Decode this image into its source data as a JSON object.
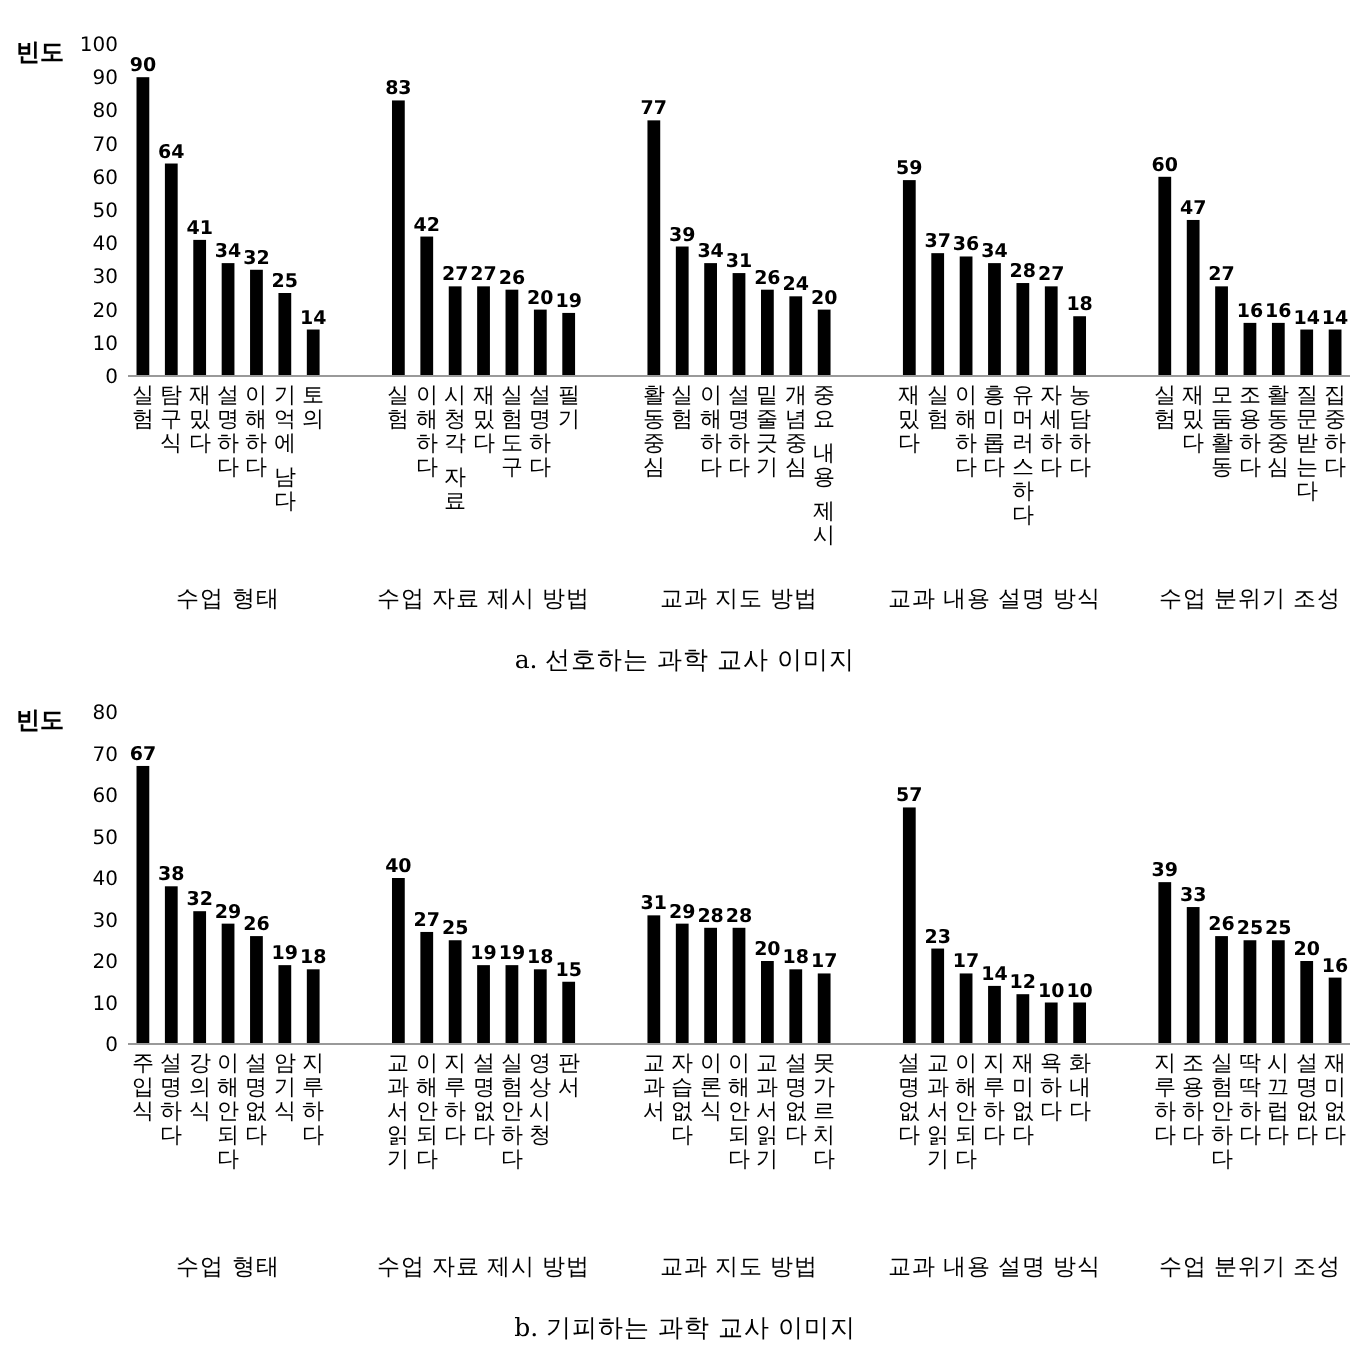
{
  "chart_data": [
    {
      "type": "bar",
      "title": "a. 선호하는 과학 교사 이미지",
      "ylabel": "빈도",
      "ylim": [
        0,
        100
      ],
      "yticks": [
        0,
        10,
        20,
        30,
        40,
        50,
        60,
        70,
        80,
        90,
        100
      ],
      "grid": false,
      "data_labels": true,
      "color": "#000000",
      "categories": [
        "실험",
        "탐구식",
        "재밌다",
        "설명하다",
        "이해하다",
        "기억에 남다",
        "토의",
        null,
        null,
        "실험",
        "이해하다",
        "시청각 자료",
        "재밌다",
        "실험도구",
        "설명하다",
        "필기",
        null,
        null,
        "활동중심",
        "실험",
        "이해하다",
        "설명하다",
        "밑줄긋기",
        "개념중심",
        "중요 내용 제시",
        null,
        null,
        "재밌다",
        "실험",
        "이해하다",
        "흥미롭다",
        "유머러스하다",
        "자세하다",
        "농담하다",
        null,
        null,
        "실험",
        "재밌다",
        "모둠활동",
        "조용하다",
        "활동중심",
        "질문받는다",
        "집중하다"
      ],
      "values": [
        90,
        64,
        41,
        34,
        32,
        25,
        14,
        null,
        null,
        83,
        42,
        27,
        27,
        26,
        20,
        19,
        null,
        null,
        77,
        39,
        34,
        31,
        26,
        24,
        20,
        null,
        null,
        59,
        37,
        36,
        34,
        28,
        27,
        18,
        null,
        null,
        60,
        47,
        27,
        16,
        16,
        14,
        14
      ],
      "annotations": [
        "수업 형태",
        "수업 자료 제시 방법",
        "교과 지도 방법",
        "교과 내용 설명 방식",
        "수업 분위기 조성"
      ]
    },
    {
      "type": "bar",
      "title": "b. 기피하는 과학 교사 이미지",
      "ylabel": "빈도",
      "ylim": [
        0,
        80
      ],
      "yticks": [
        0,
        10,
        20,
        30,
        40,
        50,
        60,
        70,
        80
      ],
      "grid": false,
      "data_labels": true,
      "color": "#000000",
      "categories": [
        "주입식",
        "설명하다",
        "강의식",
        "이해안되다",
        "설명없다",
        "암기식",
        "지루하다",
        null,
        null,
        "교과서읽기",
        "이해안되다",
        "지루하다",
        "설명없다",
        "실험안하다",
        "영상시청",
        "판서",
        null,
        null,
        "교과서",
        "자습없다",
        "이론식",
        "이해안되다",
        "교과서읽기",
        "설명없다",
        "못가르치다",
        null,
        null,
        "설명없다",
        "교과서읽기",
        "이해안되다",
        "지루하다",
        "재미없다",
        "욕하다",
        "화내다",
        null,
        null,
        "지루하다",
        "조용하다",
        "실험안하다",
        "딱딱하다",
        "시끄럽다",
        "설명없다",
        "재미없다"
      ],
      "values": [
        67,
        38,
        32,
        29,
        26,
        19,
        18,
        null,
        null,
        40,
        27,
        25,
        19,
        19,
        18,
        15,
        null,
        null,
        31,
        29,
        28,
        28,
        20,
        18,
        17,
        null,
        null,
        57,
        23,
        17,
        14,
        12,
        10,
        10,
        null,
        null,
        39,
        33,
        26,
        25,
        25,
        20,
        16
      ],
      "annotations": [
        "수업 형태",
        "수업 자료 제시 방법",
        "교과 지도 방법",
        "교과 내용 설명 방식",
        "수업 분위기 조성"
      ]
    }
  ]
}
